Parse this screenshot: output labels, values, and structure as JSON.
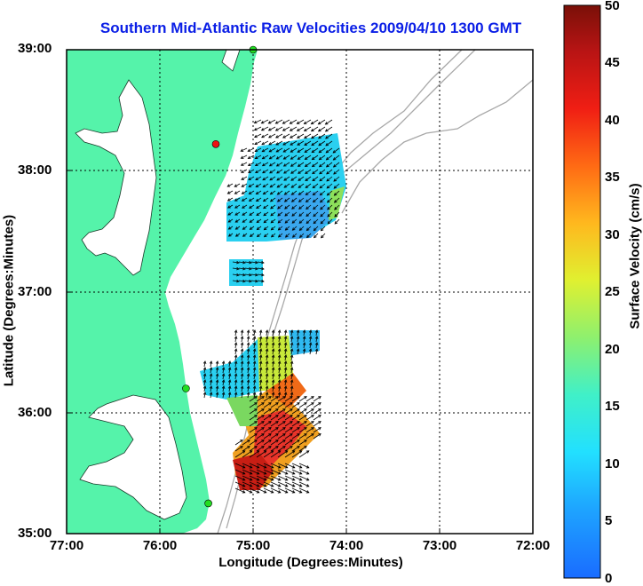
{
  "title": "Southern Mid-Atlantic Raw Velocities 2009/04/10 1300 GMT",
  "axes": {
    "xlabel": "Longitude (Degrees:Minutes)",
    "ylabel": "Latitude (Degrees:Minutes)",
    "x_ticks": [
      "77:00",
      "76:00",
      "75:00",
      "74:00",
      "73:00",
      "72:00"
    ],
    "y_ticks": [
      "39:00",
      "38:00",
      "37:00",
      "36:00",
      "35:00"
    ]
  },
  "colorbar": {
    "label": "Surface Velocity (cm/s)",
    "ticks": [
      "50",
      "45",
      "40",
      "35",
      "30",
      "25",
      "20",
      "15",
      "10",
      "5",
      "0"
    ],
    "range": [
      0,
      50
    ]
  },
  "map": {
    "extent": {
      "lon": [
        -77,
        -72
      ],
      "lat": [
        35,
        39
      ]
    },
    "land_color": "#55f3aa",
    "stations": [
      {
        "lon": -75.0,
        "lat": 39.0,
        "color": "#22dd22"
      },
      {
        "lon": -75.4,
        "lat": 38.22,
        "color": "#ee1111"
      },
      {
        "lon": -75.72,
        "lat": 36.2,
        "color": "#22dd22"
      },
      {
        "lon": -75.48,
        "lat": 35.25,
        "color": "#22dd22"
      }
    ]
  }
}
